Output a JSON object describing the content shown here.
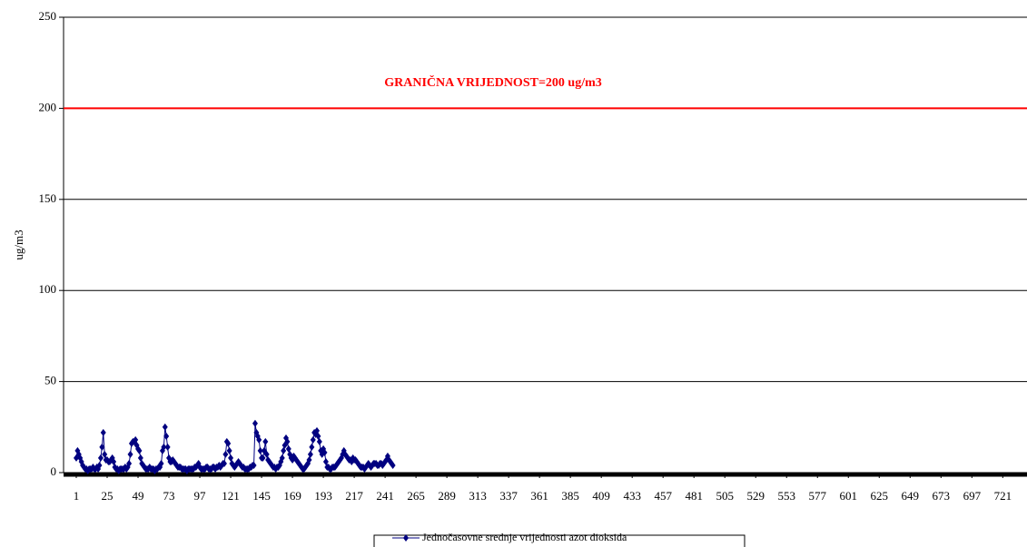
{
  "chart_data": {
    "type": "line",
    "y_label": "ug/m3",
    "limit": {
      "value": 200,
      "label": "GRANIČNA VRIJEDNOST=200 ug/m3",
      "color": "#ff0000"
    },
    "x": [
      1,
      2,
      3,
      4,
      5,
      6,
      7,
      8,
      9,
      10,
      11,
      12,
      13,
      14,
      15,
      16,
      17,
      18,
      19,
      20,
      21,
      22,
      23,
      24,
      25,
      26,
      27,
      28,
      29,
      30,
      31,
      32,
      33,
      34,
      35,
      36,
      37,
      38,
      39,
      40,
      41,
      42,
      43,
      44,
      45,
      46,
      47,
      48,
      49,
      50,
      51,
      52,
      53,
      54,
      55,
      56,
      57,
      58,
      59,
      60,
      61,
      62,
      63,
      64,
      65,
      66,
      67,
      68,
      69,
      70,
      71,
      72,
      73,
      74,
      75,
      76,
      77,
      78,
      79,
      80,
      81,
      82,
      83,
      84,
      85,
      86,
      87,
      88,
      89,
      90,
      91,
      92,
      93,
      94,
      95,
      96,
      97,
      98,
      99,
      100,
      101,
      102,
      103,
      104,
      105,
      106,
      107,
      108,
      109,
      110,
      111,
      112,
      113,
      114,
      115,
      116,
      117,
      118,
      119,
      120,
      121,
      122,
      123,
      124,
      125,
      126,
      127,
      128,
      129,
      130,
      131,
      132,
      133,
      134,
      135,
      136,
      137,
      138,
      139,
      140,
      141,
      142,
      143,
      144,
      145,
      146,
      147,
      148,
      149,
      150,
      151,
      152,
      153,
      154,
      155,
      156,
      157,
      158,
      159,
      160,
      161,
      162,
      163,
      164,
      165,
      166,
      167,
      168,
      169,
      170,
      171,
      172,
      173,
      174,
      175,
      176,
      177,
      178,
      179,
      180,
      181,
      182,
      183,
      184,
      185,
      186,
      187,
      188,
      189,
      190,
      191,
      192,
      193,
      194,
      195,
      196,
      197,
      198,
      199,
      200,
      201,
      202,
      203,
      204,
      205,
      206,
      207,
      208,
      209,
      210,
      211,
      212,
      213,
      214,
      215,
      216,
      217,
      218,
      219,
      220,
      221,
      222,
      223,
      224,
      225,
      226,
      227,
      228,
      229,
      230,
      231,
      232,
      233,
      234,
      235,
      236,
      237,
      238,
      239,
      240,
      241,
      242,
      243,
      244,
      245,
      246,
      247
    ],
    "series": [
      {
        "name": "Jednočasovne srednje vrijednosti azot dioksida",
        "color": "#000080",
        "values": [
          8,
          12,
          10,
          8,
          6,
          4,
          3,
          2,
          2,
          1,
          2,
          2,
          2,
          3,
          2,
          2,
          3,
          2,
          4,
          8,
          14,
          22,
          10,
          7,
          7,
          6,
          6,
          7,
          8,
          6,
          3,
          2,
          2,
          1,
          2,
          2,
          2,
          2,
          3,
          2,
          3,
          5,
          10,
          16,
          17,
          17,
          18,
          15,
          13,
          12,
          8,
          5,
          4,
          3,
          2,
          2,
          2,
          3,
          2,
          2,
          2,
          1,
          2,
          2,
          3,
          3,
          5,
          12,
          14,
          25,
          20,
          14,
          8,
          6,
          6,
          7,
          6,
          5,
          4,
          3,
          3,
          3,
          2,
          2,
          2,
          2,
          1,
          2,
          2,
          2,
          2,
          2,
          3,
          3,
          4,
          5,
          3,
          2,
          2,
          2,
          2,
          3,
          3,
          2,
          2,
          2,
          3,
          3,
          2,
          3,
          3,
          4,
          3,
          4,
          5,
          5,
          10,
          17,
          16,
          12,
          8,
          5,
          4,
          3,
          4,
          5,
          6,
          5,
          4,
          3,
          3,
          2,
          2,
          2,
          2,
          3,
          3,
          4,
          4,
          27,
          22,
          20,
          18,
          12,
          8,
          8,
          12,
          17,
          10,
          7,
          6,
          5,
          4,
          3,
          3,
          2,
          3,
          3,
          4,
          6,
          8,
          12,
          15,
          19,
          17,
          13,
          10,
          8,
          7,
          9,
          8,
          7,
          6,
          5,
          4,
          3,
          2,
          2,
          3,
          4,
          5,
          7,
          10,
          14,
          18,
          22,
          21,
          23,
          20,
          17,
          12,
          10,
          13,
          11,
          6,
          3,
          3,
          2,
          2,
          3,
          3,
          3,
          4,
          5,
          6,
          7,
          8,
          10,
          12,
          10,
          9,
          8,
          7,
          7,
          6,
          8,
          7,
          7,
          6,
          5,
          4,
          3,
          3,
          3,
          2,
          3,
          4,
          5,
          4,
          3,
          4,
          5,
          5,
          5,
          4,
          4,
          5,
          5,
          4,
          5,
          6,
          7,
          9,
          7,
          6,
          5,
          4
        ]
      }
    ],
    "xlim": [
      1,
      737
    ],
    "xticks": [
      1,
      25,
      49,
      73,
      97,
      121,
      145,
      169,
      193,
      217,
      241,
      265,
      289,
      313,
      337,
      361,
      385,
      409,
      433,
      457,
      481,
      505,
      529,
      553,
      577,
      601,
      625,
      649,
      673,
      697,
      721
    ],
    "ylim": [
      0,
      250
    ],
    "yticks": [
      0,
      50,
      100,
      150,
      200,
      250
    ],
    "grid": true
  }
}
